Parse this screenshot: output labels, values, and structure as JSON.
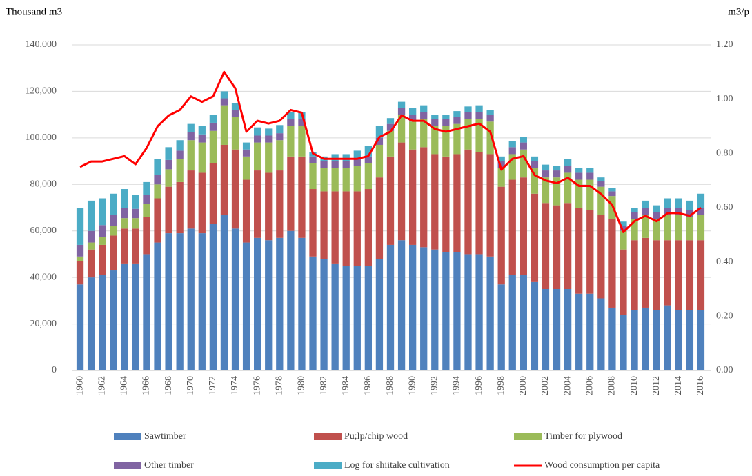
{
  "chart_data": {
    "type": "bar",
    "stacked": true,
    "y_label": "Thousand m3",
    "y2_label": "m3/p",
    "categories": [
      "1960",
      null,
      "1962",
      null,
      "1964",
      null,
      "1966",
      null,
      "1968",
      null,
      "1970",
      null,
      "1972",
      null,
      "1974",
      null,
      "1976",
      null,
      "1978",
      null,
      "1980",
      null,
      "1982",
      null,
      "1984",
      null,
      "1986",
      null,
      "1988",
      null,
      "1990",
      null,
      "1992",
      null,
      "1994",
      null,
      "1996",
      null,
      "1998",
      null,
      "2000",
      null,
      "2002",
      null,
      "2004",
      null,
      "2006",
      null,
      "2008",
      null,
      "2010",
      null,
      "2012",
      null,
      "2014",
      null,
      "2016"
    ],
    "ylim": [
      0,
      140000
    ],
    "yticks": [
      0,
      {
        "value": 20000,
        "label": "20,000"
      },
      {
        "value": 40000,
        "label": "40,000"
      },
      {
        "value": 60000,
        "label": "60,000"
      },
      {
        "value": 80000,
        "label": "80,000"
      },
      {
        "value": 100000,
        "label": "100,000"
      },
      {
        "value": 120000,
        "label": "120,000"
      },
      {
        "value": 140000,
        "label": "140,000"
      }
    ],
    "y2lim": [
      0,
      1.2
    ],
    "y2ticks": [
      {
        "value": 0,
        "label": "0.00"
      },
      {
        "value": 0.2,
        "label": "0.20"
      },
      {
        "value": 0.4,
        "label": "0.40"
      },
      {
        "value": 0.6,
        "label": "0.60"
      },
      {
        "value": 0.8,
        "label": "0.80"
      },
      {
        "value": 1.0,
        "label": "1.00"
      },
      {
        "value": 1.2,
        "label": "1.20"
      }
    ],
    "grid": true,
    "legend": "bottom",
    "series": [
      {
        "name": "Sawtimber",
        "color": "#4f81bd",
        "values": [
          37000,
          40000,
          41000,
          43000,
          46000,
          46000,
          50000,
          55000,
          59000,
          59000,
          61000,
          59000,
          63000,
          67000,
          61000,
          55000,
          57000,
          56000,
          57000,
          60000,
          57000,
          49000,
          48000,
          46000,
          45000,
          45000,
          45000,
          48000,
          54000,
          56000,
          54000,
          53000,
          52000,
          51000,
          51000,
          50000,
          50000,
          49000,
          37000,
          41000,
          41000,
          38000,
          35000,
          35000,
          35000,
          33000,
          33000,
          31000,
          27000,
          24000,
          26000,
          27000,
          26000,
          28000,
          26000,
          26000,
          26000
        ]
      },
      {
        "name": "Pu;lp/chip wood",
        "color": "#c0504d",
        "values": [
          10000,
          12000,
          13000,
          15000,
          15000,
          15000,
          16000,
          19000,
          20000,
          22000,
          25000,
          26000,
          26000,
          30000,
          34000,
          27000,
          29000,
          29000,
          29000,
          32000,
          35000,
          29000,
          29000,
          31000,
          32000,
          32000,
          33000,
          35000,
          38000,
          42000,
          41000,
          43000,
          41000,
          41000,
          42000,
          45000,
          44000,
          44000,
          42000,
          41000,
          42000,
          38000,
          37000,
          36000,
          37000,
          37000,
          36000,
          36000,
          38000,
          28000,
          30000,
          30000,
          30000,
          28000,
          30000,
          30000,
          30000
        ]
      },
      {
        "name": "Timber for plywood",
        "color": "#9bbb59",
        "values": [
          2000,
          3000,
          3500,
          4000,
          4500,
          4500,
          5500,
          6000,
          7500,
          10000,
          13000,
          13000,
          14000,
          17000,
          14000,
          10000,
          12000,
          13000,
          13000,
          13000,
          13000,
          11000,
          10000,
          10000,
          10000,
          11000,
          11000,
          14000,
          11000,
          12000,
          12000,
          12000,
          12000,
          13000,
          13000,
          13000,
          14000,
          14000,
          8000,
          11000,
          12000,
          11000,
          11000,
          12000,
          13000,
          12000,
          13000,
          12000,
          10000,
          8000,
          9000,
          10000,
          9000,
          11000,
          11000,
          10000,
          11000
        ]
      },
      {
        "name": "Other timber",
        "color": "#8064a2",
        "values": [
          5000,
          5000,
          5000,
          5000,
          4500,
          4000,
          4000,
          4000,
          4000,
          3500,
          3500,
          3500,
          3500,
          3000,
          3000,
          3000,
          3000,
          3000,
          3000,
          3000,
          3000,
          3000,
          3000,
          3000,
          3000,
          3000,
          3000,
          3000,
          3000,
          3000,
          3000,
          3000,
          3000,
          3000,
          3000,
          3000,
          3000,
          3000,
          3000,
          3000,
          3000,
          3000,
          3000,
          3000,
          3000,
          3000,
          3000,
          2500,
          2000,
          2000,
          3000,
          3000,
          3000,
          3000,
          3000,
          3000,
          3000
        ]
      },
      {
        "name": "Log for shiitake cultivation",
        "color": "#4bacc6",
        "values": [
          16000,
          13000,
          11500,
          9000,
          8000,
          6000,
          5500,
          7000,
          5500,
          4500,
          3500,
          3500,
          3500,
          3000,
          3000,
          3000,
          3500,
          3000,
          3500,
          3000,
          3000,
          2000,
          2000,
          3000,
          3000,
          3500,
          4500,
          5000,
          2500,
          2500,
          3000,
          3000,
          2000,
          2000,
          2500,
          2500,
          3000,
          2000,
          2000,
          2500,
          2500,
          2000,
          2500,
          2000,
          3000,
          2000,
          2000,
          1500,
          1500,
          2000,
          2000,
          3000,
          3000,
          4000,
          4000,
          4000,
          6000
        ]
      },
      {
        "name": "Wood consumption per capita",
        "color": "#ff0000",
        "type": "line",
        "axis": "y2",
        "values": [
          0.75,
          0.77,
          0.77,
          0.78,
          0.79,
          0.76,
          0.82,
          0.9,
          0.94,
          0.96,
          1.01,
          0.99,
          1.01,
          1.1,
          1.04,
          0.88,
          0.92,
          0.91,
          0.92,
          0.96,
          0.95,
          0.8,
          0.78,
          0.78,
          0.78,
          0.78,
          0.79,
          0.86,
          0.88,
          0.94,
          0.92,
          0.92,
          0.89,
          0.88,
          0.89,
          0.9,
          0.91,
          0.88,
          0.74,
          0.78,
          0.79,
          0.72,
          0.7,
          0.69,
          0.71,
          0.68,
          0.68,
          0.65,
          0.61,
          0.51,
          0.55,
          0.57,
          0.55,
          0.58,
          0.58,
          0.57,
          0.6
        ]
      }
    ]
  }
}
